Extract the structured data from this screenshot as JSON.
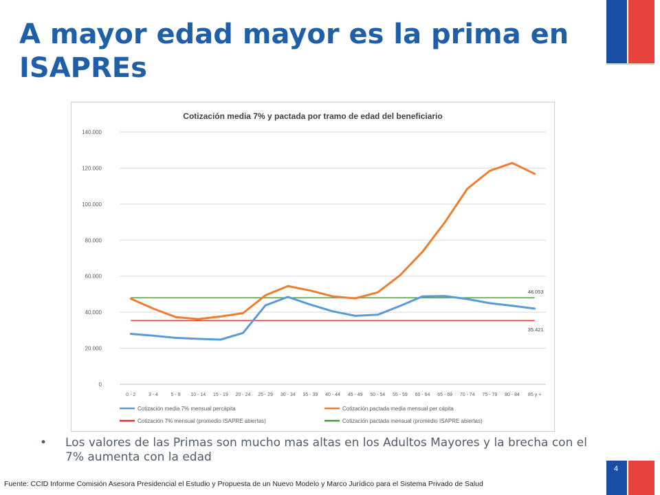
{
  "slide": {
    "title": "A mayor edad mayor es la prima en ISAPREs",
    "bullet": "Los valores de las Primas son mucho mas altas en los Adultos Mayores y la brecha con el 7% aumenta con la edad",
    "source": "Fuente: CCID  Informe Comisión Asesora Presidencial el Estudio y Propuesta de un Nuevo Modelo y Marco Jurídico para el Sistema Privado de Salud",
    "page_number": "4",
    "colors": {
      "title": "#1f5fa8",
      "flag_blue": "#1a4ea3",
      "flag_red": "#e8423f"
    }
  },
  "chart_data": {
    "type": "line",
    "title": "Cotización media 7% y pactada por tramo de edad del beneficiario",
    "xlabel": "",
    "ylabel": "",
    "ylim": [
      0,
      140000
    ],
    "yticks": [
      0,
      20000,
      40000,
      60000,
      80000,
      100000,
      120000,
      140000
    ],
    "ytick_labels": [
      "0",
      "20.000",
      "40.000",
      "60.000",
      "80.000",
      "100.000",
      "120.000",
      "140.000"
    ],
    "grid": true,
    "legend_position": "bottom",
    "categories": [
      "0 - 2",
      "3 - 4",
      "5 - 9",
      "10 - 14",
      "15 - 19",
      "20 - 24",
      "25 - 29",
      "30 - 34",
      "35 - 39",
      "40 - 44",
      "45 - 49",
      "50 - 54",
      "55 - 59",
      "60 - 64",
      "65 - 69",
      "70 - 74",
      "75 - 79",
      "80 - 84",
      "85 y +"
    ],
    "series": [
      {
        "name": "Cotización media 7% mensual percápita",
        "color": "#5b9bd5",
        "values": [
          28000,
          27000,
          25800,
          25200,
          24800,
          28500,
          43800,
          48500,
          44200,
          40500,
          38000,
          38600,
          43500,
          48800,
          49000,
          47300,
          45000,
          43600,
          42000
        ]
      },
      {
        "name": "Cotización pactada media mensual per cápita",
        "color": "#ed7d31",
        "values": [
          47500,
          42000,
          37300,
          36200,
          37600,
          39500,
          49400,
          54500,
          52000,
          48800,
          47700,
          51000,
          60500,
          73500,
          90000,
          108500,
          118500,
          122800,
          116800
        ]
      },
      {
        "name": "Cotización 7% mensual (promedio ISAPRE abiertas)",
        "color": "#e0302a",
        "constant": 35421,
        "values": [
          35421,
          35421,
          35421,
          35421,
          35421,
          35421,
          35421,
          35421,
          35421,
          35421,
          35421,
          35421,
          35421,
          35421,
          35421,
          35421,
          35421,
          35421,
          35421
        ]
      },
      {
        "name": "Cotización pactada mensual (promedio ISAPRE abiertas)",
        "color": "#3a9a2f",
        "constant": 48053,
        "values": [
          48053,
          48053,
          48053,
          48053,
          48053,
          48053,
          48053,
          48053,
          48053,
          48053,
          48053,
          48053,
          48053,
          48053,
          48053,
          48053,
          48053,
          48053,
          48053
        ]
      }
    ],
    "annotations": [
      {
        "text": "48.053",
        "series": 3
      },
      {
        "text": "35.421",
        "series": 2
      }
    ]
  }
}
